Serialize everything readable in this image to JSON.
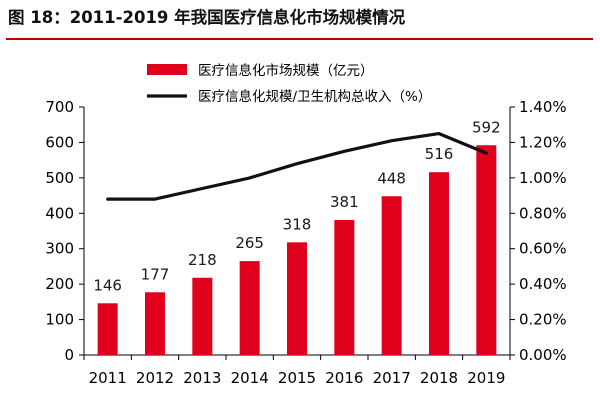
{
  "header": {
    "figure_label": "图 18：",
    "title_text": "2011-2019 年我国医疗信息化市场规模情况"
  },
  "colors": {
    "bar": "#e0001b",
    "line": "#111111",
    "title_rule": "#c00000",
    "axis": "#000000"
  },
  "chart_data": {
    "type": "bar",
    "categories": [
      "2011",
      "2012",
      "2013",
      "2014",
      "2015",
      "2016",
      "2017",
      "2018",
      "2019"
    ],
    "series": [
      {
        "name": "医疗信息化市场规模（亿元）",
        "type": "bar",
        "axis": "left",
        "values": [
          146,
          177,
          218,
          265,
          318,
          381,
          448,
          516,
          592
        ]
      },
      {
        "name": "医疗信息化规模/卫生机构总收入（%）",
        "type": "line",
        "axis": "right",
        "values": [
          0.88,
          0.88,
          0.94,
          1.0,
          1.08,
          1.15,
          1.21,
          1.25,
          1.14
        ]
      }
    ],
    "ylim_left": [
      0,
      700
    ],
    "yticks_left": [
      "0",
      "100",
      "200",
      "300",
      "400",
      "500",
      "600",
      "700"
    ],
    "ylim_right": [
      0,
      1.4
    ],
    "yticks_right": [
      "0.00%",
      "0.20%",
      "0.40%",
      "0.60%",
      "0.80%",
      "1.00%",
      "1.20%",
      "1.40%"
    ],
    "grid": false,
    "legend_position": "top-center"
  }
}
